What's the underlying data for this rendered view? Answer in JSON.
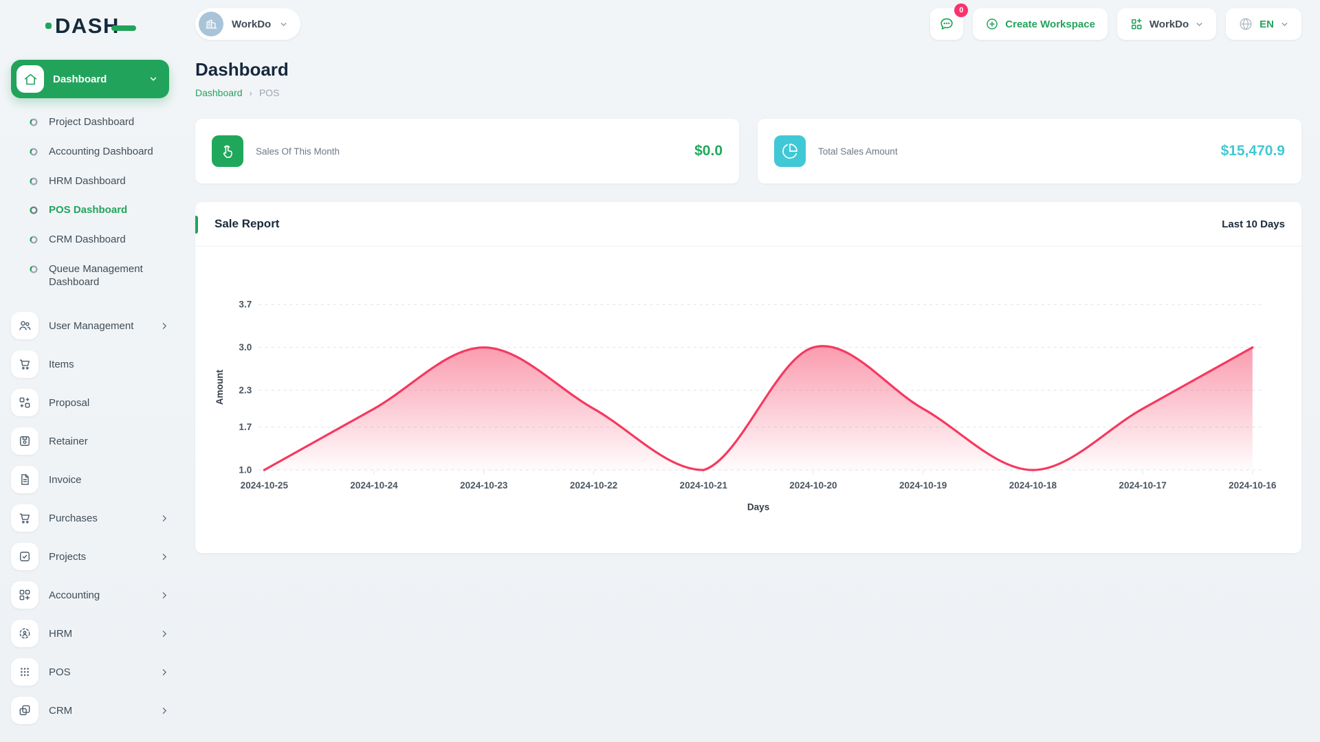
{
  "brand": {
    "logo_text": "DASH"
  },
  "workspace_switcher": {
    "name": "WorkDo"
  },
  "header": {
    "messages_badge": "0",
    "create_workspace_label": "Create Workspace",
    "workdo_label": "WorkDo",
    "language": "EN"
  },
  "page": {
    "title": "Dashboard",
    "breadcrumb": [
      "Dashboard",
      "POS"
    ],
    "separator": "›"
  },
  "sidebar": {
    "dashboard": {
      "label": "Dashboard",
      "children": [
        {
          "label": "Project Dashboard"
        },
        {
          "label": "Accounting Dashboard"
        },
        {
          "label": "HRM Dashboard"
        },
        {
          "label": "POS Dashboard",
          "active": true
        },
        {
          "label": "CRM Dashboard"
        },
        {
          "label": "Queue Management Dashboard"
        }
      ]
    },
    "items": [
      {
        "label": "User Management",
        "has_children": true
      },
      {
        "label": "Items",
        "has_children": false
      },
      {
        "label": "Proposal",
        "has_children": false
      },
      {
        "label": "Retainer",
        "has_children": false
      },
      {
        "label": "Invoice",
        "has_children": false
      },
      {
        "label": "Purchases",
        "has_children": true
      },
      {
        "label": "Projects",
        "has_children": true
      },
      {
        "label": "Accounting",
        "has_children": true
      },
      {
        "label": "HRM",
        "has_children": true
      },
      {
        "label": "POS",
        "has_children": true
      },
      {
        "label": "CRM",
        "has_children": true
      }
    ]
  },
  "stat_cards": [
    {
      "label": "Sales Of This Month",
      "value": "$0.0",
      "icon": "tap-icon",
      "color": "#1fa85b"
    },
    {
      "label": "Total Sales Amount",
      "value": "$15,470.9",
      "icon": "pie-chart-icon",
      "color": "#41c8d6"
    }
  ],
  "sale_report": {
    "title": "Sale Report",
    "range_label": "Last 10 Days"
  },
  "chart_data": {
    "type": "area",
    "title": "Sale Report",
    "x": [
      "2024-10-25",
      "2024-10-24",
      "2024-10-23",
      "2024-10-22",
      "2024-10-21",
      "2024-10-20",
      "2024-10-19",
      "2024-10-18",
      "2024-10-17",
      "2024-10-16"
    ],
    "series": [
      {
        "name": "Amount",
        "values": [
          1,
          2,
          3,
          2,
          1,
          3,
          2,
          1,
          2,
          3
        ]
      }
    ],
    "xlabel": "Days",
    "ylabel": "Amount",
    "y_ticks": [
      1.0,
      1.7,
      2.3,
      3.0,
      3.7
    ],
    "ylim": [
      1.0,
      3.7
    ],
    "grid": "dashed-horizontal",
    "legend": "none",
    "smooth": true,
    "line_color": "#f5395f",
    "fill": "gradient"
  },
  "icons": {
    "sidebar": [
      "home-icon",
      "donut-icon",
      "users-icon",
      "cart-icon",
      "proposal-icon",
      "retainer-icon",
      "invoice-icon",
      "purchases-icon",
      "projects-icon",
      "accounting-icon",
      "hrm-icon",
      "pos-grid-icon",
      "crm-icon",
      "chevron-right-icon",
      "chevron-down-icon"
    ],
    "header": [
      "building-icon",
      "message-icon",
      "plus-circle-icon",
      "apps-grid-icon",
      "globe-icon"
    ],
    "cards": [
      "tap-icon",
      "pie-chart-icon"
    ]
  },
  "colors": {
    "primary_green": "#22a35c",
    "teal": "#41c8d6",
    "chart_pink": "#f5395f",
    "badge_pink": "#f8336e",
    "dark": "#16283c"
  }
}
